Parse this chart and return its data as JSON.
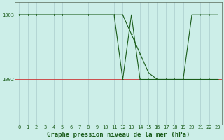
{
  "background_color": "#cceee8",
  "plot_bg_color": "#cceee8",
  "line_color": "#1a5c1a",
  "grid_color": "#aacccc",
  "hline_color": "#cc3333",
  "title": "Graphe pression niveau de la mer (hPa)",
  "x_values": [
    0,
    1,
    2,
    3,
    4,
    5,
    6,
    7,
    8,
    9,
    10,
    11,
    12,
    13,
    14,
    15,
    16,
    17,
    18,
    19,
    20,
    21,
    22,
    23
  ],
  "y_series1": [
    1003,
    1003,
    1003,
    1003,
    1003,
    1003,
    1003,
    1003,
    1003,
    1003,
    1003,
    1003,
    1002,
    1003,
    1002,
    1002,
    1002,
    1002,
    1002,
    1002,
    1003,
    1003,
    1003,
    1003
  ],
  "y_series2": [
    1003,
    1003,
    1003,
    1003,
    1003,
    1003,
    1003,
    1003,
    1003,
    1003,
    1003,
    1003,
    1003,
    1002.7,
    1002.4,
    1002.1,
    1002,
    1002,
    1002,
    1002,
    1002,
    1002,
    1002,
    1002
  ],
  "ylim_min": 1001.3,
  "ylim_max": 1003.2,
  "ytick_positions": [
    1002,
    1003
  ],
  "ytick_labels": [
    "1002",
    "1003"
  ],
  "xlim_min": -0.5,
  "xlim_max": 23.5,
  "title_fontsize": 6.5,
  "tick_fontsize": 5.0,
  "marker_size": 2.0,
  "linewidth": 0.8
}
